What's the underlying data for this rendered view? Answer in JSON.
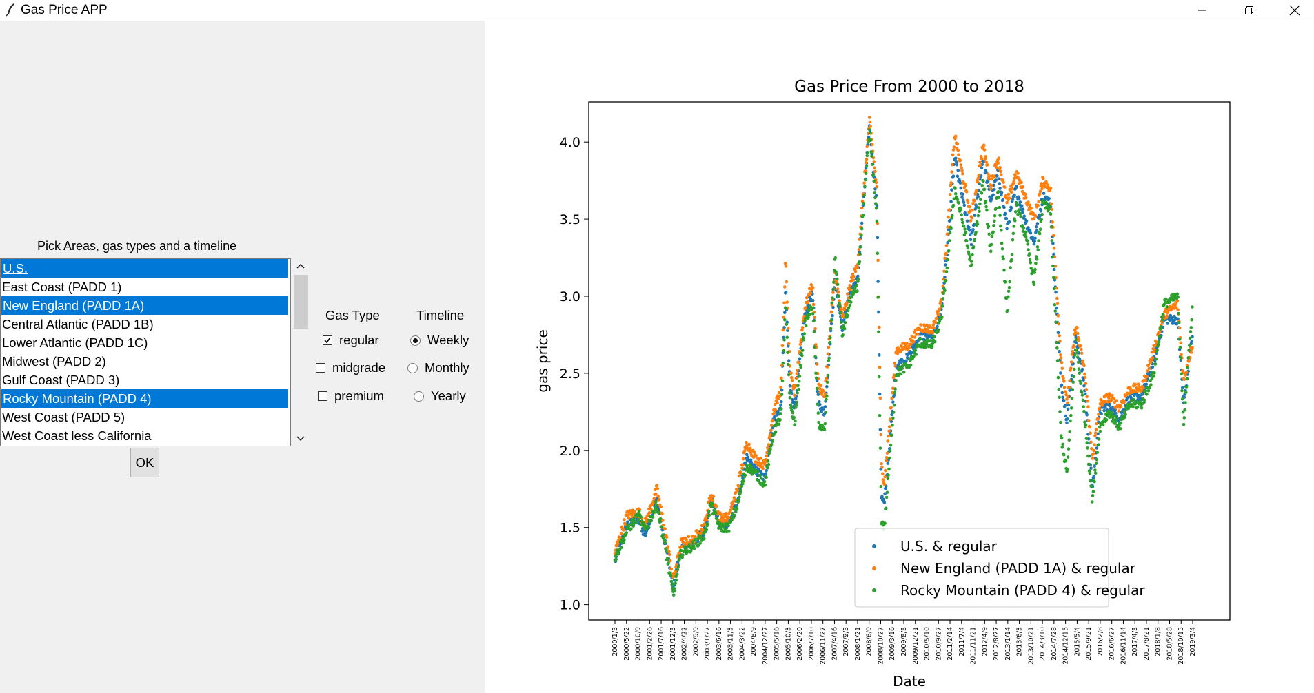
{
  "window": {
    "title": "Gas Price APP",
    "controls": {
      "minimize_icon": "minimize-icon",
      "maximize_icon": "restore-icon",
      "close_icon": "close-icon"
    }
  },
  "left": {
    "pick_label": "Pick Areas, gas types and a timeline",
    "areas": [
      {
        "label": "U.S.",
        "selected": true
      },
      {
        "label": "East Coast (PADD 1)",
        "selected": false
      },
      {
        "label": "New England (PADD 1A)",
        "selected": true
      },
      {
        "label": "Central Atlantic (PADD 1B)",
        "selected": false
      },
      {
        "label": "Lower Atlantic (PADD 1C)",
        "selected": false
      },
      {
        "label": "Midwest (PADD 2)",
        "selected": false
      },
      {
        "label": "Gulf Coast (PADD 3)",
        "selected": false
      },
      {
        "label": "Rocky Mountain (PADD 4)",
        "selected": true
      },
      {
        "label": "West Coast (PADD 5)",
        "selected": false
      },
      {
        "label": "West Coast less California",
        "selected": false
      }
    ],
    "ok_label": "OK",
    "gas_type_header": "Gas Type",
    "gas_types": [
      {
        "label": "regular",
        "checked": true
      },
      {
        "label": "midgrade",
        "checked": false
      },
      {
        "label": "premium",
        "checked": false
      }
    ],
    "timeline_header": "Timeline",
    "timelines": [
      {
        "label": "Weekly",
        "selected": true
      },
      {
        "label": "Monthly",
        "selected": false
      },
      {
        "label": "Yearly",
        "selected": false
      }
    ]
  },
  "chart_data": {
    "type": "scatter",
    "title": "Gas Price From 2000 to 2018",
    "xlabel": "Date",
    "ylabel": "gas price",
    "ylim": [
      0.9,
      4.26
    ],
    "yticks": [
      1.0,
      1.5,
      2.0,
      2.5,
      3.0,
      3.5,
      4.0
    ],
    "ytick_labels": [
      "1.0",
      "1.5",
      "2.0",
      "2.5",
      "3.0",
      "3.5",
      "4.0"
    ],
    "xtick_labels": [
      "2000/1/3",
      "2000/5/22",
      "2000/10/9",
      "2001/2/26",
      "2001/7/16",
      "2001/12/3",
      "2002/4/22",
      "2002/9/9",
      "2003/1/27",
      "2003/6/16",
      "2003/11/3",
      "2004/3/22",
      "2004/8/9",
      "2004/12/27",
      "2005/5/16",
      "2005/10/3",
      "2006/2/20",
      "2006/7/10",
      "2006/11/27",
      "2007/4/16",
      "2007/9/3",
      "2008/1/21",
      "2008/6/9",
      "2008/10/27",
      "2009/3/16",
      "2009/8/3",
      "2009/12/21",
      "2010/5/10",
      "2010/9/27",
      "2011/2/14",
      "2011/7/4",
      "2011/11/21",
      "2012/4/9",
      "2012/8/27",
      "2013/1/14",
      "2013/6/3",
      "2013/10/21",
      "2014/3/10",
      "2014/7/28",
      "2014/12/15",
      "2015/5/4",
      "2015/9/21",
      "2016/2/8",
      "2016/6/27",
      "2016/11/14",
      "2017/4/3",
      "2017/8/21",
      "2018/1/8",
      "2018/5/28",
      "2018/10/15",
      "2019/3/4"
    ],
    "legend_position": "lower-right",
    "series": [
      {
        "name": "U.S. & regular",
        "color": "#1f77b4",
        "key": [
          [
            2000.0,
            1.28
          ],
          [
            2000.4,
            1.52
          ],
          [
            2000.8,
            1.55
          ],
          [
            2001.0,
            1.45
          ],
          [
            2001.4,
            1.68
          ],
          [
            2001.7,
            1.38
          ],
          [
            2001.95,
            1.1
          ],
          [
            2002.2,
            1.36
          ],
          [
            2002.6,
            1.4
          ],
          [
            2003.0,
            1.48
          ],
          [
            2003.2,
            1.7
          ],
          [
            2003.5,
            1.52
          ],
          [
            2003.8,
            1.52
          ],
          [
            2004.1,
            1.68
          ],
          [
            2004.4,
            1.95
          ],
          [
            2004.7,
            1.87
          ],
          [
            2005.0,
            1.82
          ],
          [
            2005.3,
            2.2
          ],
          [
            2005.55,
            2.28
          ],
          [
            2005.7,
            3.05
          ],
          [
            2005.85,
            2.4
          ],
          [
            2006.0,
            2.28
          ],
          [
            2006.35,
            2.88
          ],
          [
            2006.6,
            3.02
          ],
          [
            2006.8,
            2.3
          ],
          [
            2007.0,
            2.25
          ],
          [
            2007.35,
            3.1
          ],
          [
            2007.6,
            2.8
          ],
          [
            2007.9,
            3.05
          ],
          [
            2008.1,
            3.1
          ],
          [
            2008.5,
            4.1
          ],
          [
            2008.75,
            3.6
          ],
          [
            2008.9,
            1.7
          ],
          [
            2009.0,
            1.65
          ],
          [
            2009.4,
            2.55
          ],
          [
            2009.8,
            2.6
          ],
          [
            2010.2,
            2.75
          ],
          [
            2010.6,
            2.72
          ],
          [
            2010.9,
            2.9
          ],
          [
            2011.1,
            3.3
          ],
          [
            2011.35,
            3.9
          ],
          [
            2011.6,
            3.65
          ],
          [
            2011.9,
            3.35
          ],
          [
            2012.3,
            3.9
          ],
          [
            2012.55,
            3.62
          ],
          [
            2012.8,
            3.8
          ],
          [
            2013.1,
            3.45
          ],
          [
            2013.4,
            3.7
          ],
          [
            2013.7,
            3.5
          ],
          [
            2014.0,
            3.35
          ],
          [
            2014.3,
            3.65
          ],
          [
            2014.55,
            3.6
          ],
          [
            2014.9,
            2.45
          ],
          [
            2015.1,
            2.2
          ],
          [
            2015.4,
            2.75
          ],
          [
            2015.7,
            2.4
          ],
          [
            2015.95,
            1.75
          ],
          [
            2016.2,
            2.25
          ],
          [
            2016.5,
            2.3
          ],
          [
            2016.85,
            2.2
          ],
          [
            2017.2,
            2.35
          ],
          [
            2017.6,
            2.35
          ],
          [
            2018.0,
            2.58
          ],
          [
            2018.35,
            2.85
          ],
          [
            2018.8,
            2.85
          ],
          [
            2019.0,
            2.3
          ],
          [
            2019.3,
            2.75
          ]
        ],
        "offset": 0
      },
      {
        "name": "New England (PADD 1A) & regular",
        "color": "#ff7f0e",
        "key": [
          [
            2000.0,
            1.34
          ],
          [
            2000.4,
            1.58
          ],
          [
            2000.8,
            1.6
          ],
          [
            2001.0,
            1.52
          ],
          [
            2001.4,
            1.75
          ],
          [
            2001.7,
            1.45
          ],
          [
            2001.95,
            1.16
          ],
          [
            2002.2,
            1.4
          ],
          [
            2002.6,
            1.42
          ],
          [
            2003.0,
            1.52
          ],
          [
            2003.2,
            1.72
          ],
          [
            2003.5,
            1.57
          ],
          [
            2003.8,
            1.56
          ],
          [
            2004.1,
            1.76
          ],
          [
            2004.4,
            2.05
          ],
          [
            2004.7,
            1.95
          ],
          [
            2005.0,
            1.9
          ],
          [
            2005.3,
            2.25
          ],
          [
            2005.55,
            2.4
          ],
          [
            2005.7,
            3.23
          ],
          [
            2005.85,
            2.5
          ],
          [
            2006.0,
            2.38
          ],
          [
            2006.35,
            2.93
          ],
          [
            2006.6,
            3.08
          ],
          [
            2006.8,
            2.42
          ],
          [
            2007.0,
            2.35
          ],
          [
            2007.35,
            3.15
          ],
          [
            2007.6,
            2.85
          ],
          [
            2007.9,
            3.1
          ],
          [
            2008.1,
            3.2
          ],
          [
            2008.5,
            4.14
          ],
          [
            2008.75,
            3.7
          ],
          [
            2008.9,
            1.9
          ],
          [
            2009.0,
            1.8
          ],
          [
            2009.4,
            2.65
          ],
          [
            2009.8,
            2.68
          ],
          [
            2010.2,
            2.8
          ],
          [
            2010.6,
            2.78
          ],
          [
            2010.9,
            2.95
          ],
          [
            2011.1,
            3.4
          ],
          [
            2011.35,
            4.05
          ],
          [
            2011.6,
            3.8
          ],
          [
            2011.9,
            3.5
          ],
          [
            2012.3,
            3.98
          ],
          [
            2012.55,
            3.72
          ],
          [
            2012.8,
            3.9
          ],
          [
            2013.1,
            3.6
          ],
          [
            2013.4,
            3.8
          ],
          [
            2013.7,
            3.65
          ],
          [
            2014.0,
            3.5
          ],
          [
            2014.3,
            3.75
          ],
          [
            2014.55,
            3.7
          ],
          [
            2014.9,
            2.6
          ],
          [
            2015.1,
            2.3
          ],
          [
            2015.4,
            2.82
          ],
          [
            2015.7,
            2.5
          ],
          [
            2015.95,
            1.95
          ],
          [
            2016.2,
            2.3
          ],
          [
            2016.5,
            2.35
          ],
          [
            2016.85,
            2.28
          ],
          [
            2017.2,
            2.4
          ],
          [
            2017.6,
            2.4
          ],
          [
            2018.0,
            2.65
          ],
          [
            2018.35,
            2.88
          ],
          [
            2018.8,
            2.95
          ],
          [
            2019.0,
            2.45
          ],
          [
            2019.3,
            2.7
          ]
        ],
        "offset": 0
      },
      {
        "name": "Rocky Mountain (PADD 4) & regular",
        "color": "#2ca02c",
        "key": [
          [
            2000.0,
            1.3
          ],
          [
            2000.4,
            1.48
          ],
          [
            2000.8,
            1.58
          ],
          [
            2001.0,
            1.48
          ],
          [
            2001.4,
            1.65
          ],
          [
            2001.7,
            1.35
          ],
          [
            2001.95,
            1.06
          ],
          [
            2002.2,
            1.33
          ],
          [
            2002.6,
            1.38
          ],
          [
            2003.0,
            1.45
          ],
          [
            2003.2,
            1.65
          ],
          [
            2003.5,
            1.5
          ],
          [
            2003.8,
            1.5
          ],
          [
            2004.1,
            1.65
          ],
          [
            2004.4,
            1.9
          ],
          [
            2004.7,
            1.85
          ],
          [
            2005.0,
            1.78
          ],
          [
            2005.3,
            2.12
          ],
          [
            2005.55,
            2.22
          ],
          [
            2005.7,
            2.95
          ],
          [
            2005.85,
            2.3
          ],
          [
            2006.0,
            2.18
          ],
          [
            2006.35,
            2.82
          ],
          [
            2006.6,
            2.95
          ],
          [
            2006.8,
            2.18
          ],
          [
            2007.0,
            2.12
          ],
          [
            2007.35,
            3.25
          ],
          [
            2007.6,
            2.75
          ],
          [
            2007.9,
            3.0
          ],
          [
            2008.1,
            3.05
          ],
          [
            2008.5,
            4.08
          ],
          [
            2008.75,
            3.5
          ],
          [
            2008.9,
            1.55
          ],
          [
            2009.0,
            1.5
          ],
          [
            2009.4,
            2.5
          ],
          [
            2009.8,
            2.55
          ],
          [
            2010.2,
            2.7
          ],
          [
            2010.6,
            2.68
          ],
          [
            2010.9,
            2.85
          ],
          [
            2011.1,
            3.2
          ],
          [
            2011.35,
            3.7
          ],
          [
            2011.6,
            3.5
          ],
          [
            2011.9,
            3.2
          ],
          [
            2012.3,
            3.75
          ],
          [
            2012.55,
            3.3
          ],
          [
            2012.8,
            3.7
          ],
          [
            2013.1,
            2.9
          ],
          [
            2013.4,
            3.6
          ],
          [
            2013.7,
            3.4
          ],
          [
            2014.0,
            3.1
          ],
          [
            2014.3,
            3.6
          ],
          [
            2014.55,
            3.55
          ],
          [
            2014.9,
            2.1
          ],
          [
            2015.1,
            1.85
          ],
          [
            2015.4,
            2.7
          ],
          [
            2015.7,
            2.2
          ],
          [
            2015.95,
            1.68
          ],
          [
            2016.2,
            2.15
          ],
          [
            2016.5,
            2.25
          ],
          [
            2016.85,
            2.15
          ],
          [
            2017.2,
            2.3
          ],
          [
            2017.6,
            2.3
          ],
          [
            2018.0,
            2.5
          ],
          [
            2018.35,
            2.95
          ],
          [
            2018.8,
            3.0
          ],
          [
            2019.0,
            2.18
          ],
          [
            2019.3,
            2.95
          ]
        ],
        "offset": 0
      }
    ]
  }
}
